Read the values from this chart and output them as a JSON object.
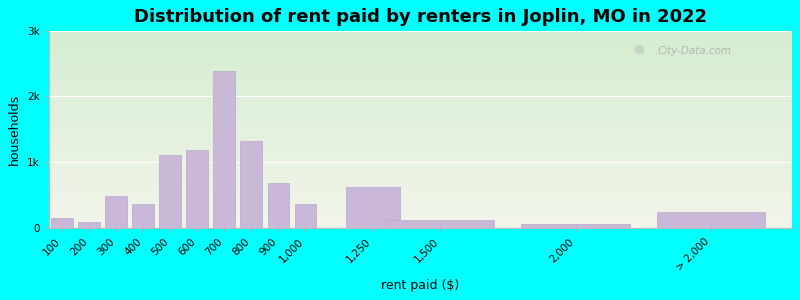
{
  "title": "Distribution of rent paid by renters in Joplin, MO in 2022",
  "xlabel": "rent paid ($)",
  "ylabel": "households",
  "bar_color": "#c9b8d8",
  "bar_edge_color": "#b8a8cc",
  "categories": [
    "100",
    "200",
    "300",
    "400",
    "500",
    "600",
    "700",
    "800",
    "900",
    "1,000",
    "1,250",
    "1,500",
    "2,000",
    "> 2,000"
  ],
  "values": [
    140,
    90,
    480,
    360,
    1100,
    1180,
    2380,
    1320,
    680,
    360,
    620,
    115,
    50,
    240
  ],
  "ylim": [
    0,
    3000
  ],
  "yticks": [
    0,
    1000,
    2000,
    3000
  ],
  "ytick_labels": [
    "0",
    "1k",
    "2k",
    "3k"
  ],
  "bg_color_top": "#d8edd8",
  "bg_color_bottom": "#f0f5e8",
  "outer_bg": "#00ffff",
  "title_fontsize": 13,
  "axis_label_fontsize": 9,
  "tick_fontsize": 7.5,
  "bar_positions": [
    100,
    200,
    300,
    400,
    500,
    600,
    700,
    800,
    900,
    1000,
    1250,
    1500,
    2000,
    2500
  ],
  "bar_widths": [
    80,
    80,
    80,
    80,
    80,
    80,
    80,
    80,
    80,
    80,
    200,
    400,
    400,
    400
  ],
  "xlim": [
    50,
    2800
  ],
  "xtick_positions": [
    100,
    200,
    300,
    400,
    500,
    600,
    700,
    800,
    900,
    1000,
    1250,
    1500,
    2000,
    2500
  ]
}
